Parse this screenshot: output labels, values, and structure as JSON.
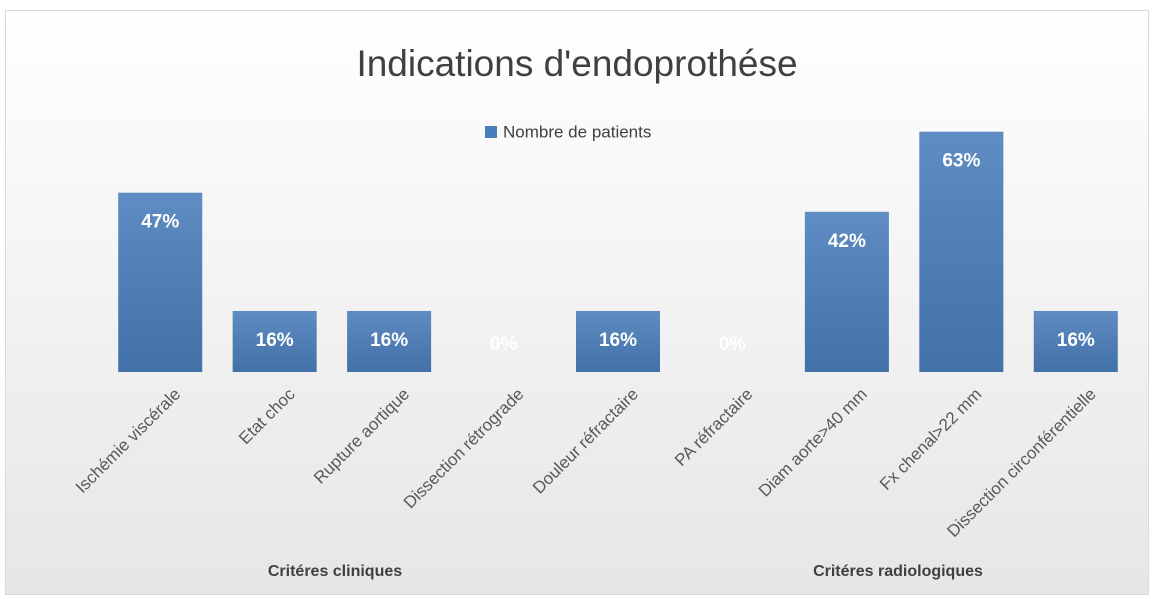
{
  "chart_data": {
    "type": "bar",
    "title": "Indications d'endoprothése",
    "categories": [
      "Ischémie viscérale",
      "Etat choc",
      "Rupture aortique",
      "Dissection rétrograde",
      "Douleur réfractaire",
      "PA réfractaire",
      "Diam aorte>40 mm",
      "Fx chenal>22 mm",
      "Dissection circonférentielle"
    ],
    "series": [
      {
        "name": "Nombre de patients",
        "color": "#4a7ebb",
        "values": [
          47,
          16,
          16,
          0,
          16,
          0,
          42,
          63,
          16
        ],
        "value_labels": [
          "47%",
          "16%",
          "16%",
          "0%",
          "16%",
          "0%",
          "42%",
          "63%",
          "16%"
        ]
      }
    ],
    "groups": [
      "Critéres cliniques",
      "Critéres radiologiques"
    ],
    "ylim": [
      0,
      70
    ],
    "legend": "top"
  }
}
